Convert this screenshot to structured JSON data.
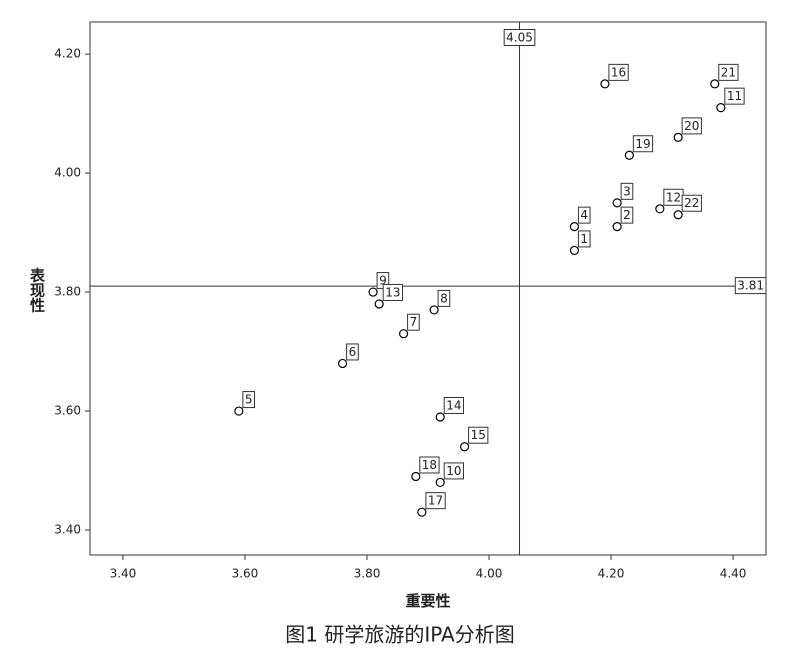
{
  "chart_data": {
    "type": "scatter",
    "caption": "图1 研学旅游的IPA分析图",
    "x_label": "重要性",
    "y_label": "表现性",
    "xlim": [
      3.346,
      4.454
    ],
    "ylim": [
      3.358,
      4.254
    ],
    "xticks": [
      {
        "value": 3.4,
        "label": "3.40"
      },
      {
        "value": 3.6,
        "label": "3.60"
      },
      {
        "value": 3.8,
        "label": "3.80"
      },
      {
        "value": 4.0,
        "label": "4.00"
      },
      {
        "value": 4.2,
        "label": "4.20"
      },
      {
        "value": 4.4,
        "label": "4.40"
      }
    ],
    "yticks": [
      {
        "value": 3.4,
        "label": "3.40"
      },
      {
        "value": 3.6,
        "label": "3.60"
      },
      {
        "value": 3.8,
        "label": "3.80"
      },
      {
        "value": 4.0,
        "label": "4.00"
      },
      {
        "value": 4.2,
        "label": "4.20"
      }
    ],
    "x_reference": 4.05,
    "y_reference": 3.81,
    "grid": false,
    "color": "#000000",
    "point_labels": [
      "1",
      "2",
      "3",
      "4",
      "5",
      "6",
      "7",
      "8",
      "9",
      "10",
      "11",
      "12",
      "13",
      "14",
      "15",
      "16",
      "17",
      "18",
      "19",
      "20",
      "21",
      "22"
    ],
    "x": [
      4.14,
      4.21,
      4.21,
      4.14,
      3.59,
      3.76,
      3.86,
      3.91,
      3.81,
      3.92,
      4.38,
      4.28,
      3.82,
      3.92,
      3.96,
      4.19,
      3.89,
      3.88,
      4.23,
      4.31,
      4.37,
      4.31
    ],
    "y": [
      3.87,
      3.91,
      3.95,
      3.91,
      3.6,
      3.68,
      3.73,
      3.77,
      3.8,
      3.48,
      4.11,
      3.94,
      3.78,
      3.59,
      3.54,
      4.15,
      3.43,
      3.49,
      4.03,
      4.06,
      4.15,
      3.93
    ]
  }
}
